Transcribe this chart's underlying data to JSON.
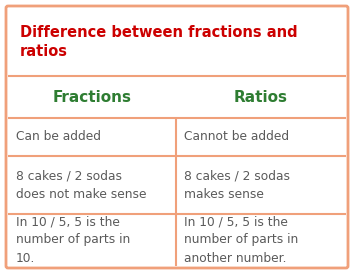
{
  "title": "Difference between fractions and\nratios",
  "title_color": "#cc0000",
  "header_left": "Fractions",
  "header_right": "Ratios",
  "header_color": "#2e7d32",
  "cell_text_color": "#5a5a5a",
  "border_color": "#f0a07a",
  "background_color": "#ffffff",
  "rows": [
    [
      "Can be added",
      "Cannot be added"
    ],
    [
      "8 cakes / 2 sodas\ndoes not make sense",
      "8 cakes / 2 sodas\nmakes sense"
    ],
    [
      "In 10 / 5, 5 is the\nnumber of parts in\n10.",
      "In 10 / 5, 5 is the\nnumber of parts in\nanother number."
    ]
  ],
  "title_fontsize": 10.5,
  "header_fontsize": 11,
  "cell_fontsize": 8.8,
  "fig_width": 3.54,
  "fig_height": 2.74,
  "dpi": 100
}
